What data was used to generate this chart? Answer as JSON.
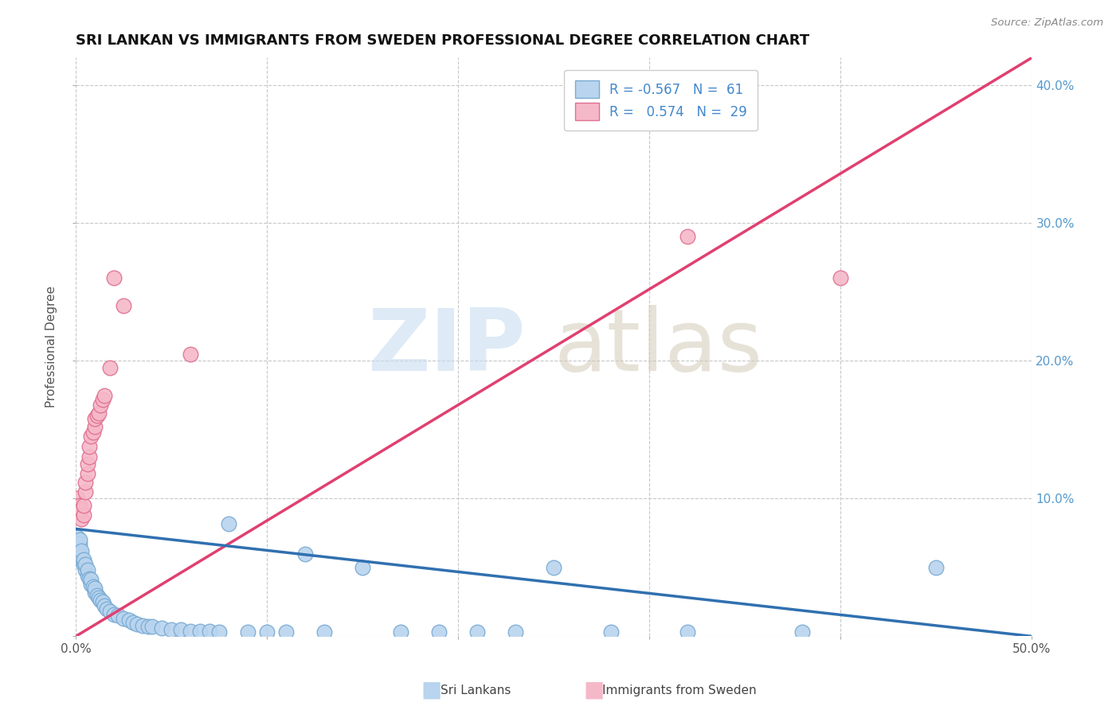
{
  "title": "SRI LANKAN VS IMMIGRANTS FROM SWEDEN PROFESSIONAL DEGREE CORRELATION CHART",
  "source": "Source: ZipAtlas.com",
  "ylabel": "Professional Degree",
  "xlim": [
    0.0,
    0.5
  ],
  "ylim": [
    0.0,
    0.42
  ],
  "x_ticks": [
    0.0,
    0.1,
    0.2,
    0.3,
    0.4,
    0.5
  ],
  "y_ticks": [
    0.0,
    0.1,
    0.2,
    0.3,
    0.4
  ],
  "x_tick_labels": [
    "0.0%",
    "",
    "",
    "",
    "",
    "50.0%"
  ],
  "y_tick_labels_right": [
    "",
    "10.0%",
    "20.0%",
    "30.0%",
    "40.0%"
  ],
  "blue_face": "#b8d4ee",
  "blue_edge": "#7aabd4",
  "pink_face": "#f5b8c8",
  "pink_edge": "#e07090",
  "line_blue": "#3070b0",
  "line_pink": "#e04070",
  "grid_color": "#c8c8c8",
  "background": "#ffffff",
  "sri_lankans_x": [
    0.001,
    0.001,
    0.001,
    0.002,
    0.002,
    0.002,
    0.002,
    0.003,
    0.003,
    0.003,
    0.004,
    0.004,
    0.005,
    0.005,
    0.006,
    0.006,
    0.007,
    0.008,
    0.008,
    0.009,
    0.01,
    0.01,
    0.011,
    0.012,
    0.013,
    0.014,
    0.015,
    0.016,
    0.018,
    0.02,
    0.022,
    0.025,
    0.028,
    0.03,
    0.032,
    0.035,
    0.038,
    0.04,
    0.045,
    0.05,
    0.055,
    0.06,
    0.065,
    0.07,
    0.075,
    0.08,
    0.09,
    0.1,
    0.11,
    0.12,
    0.13,
    0.15,
    0.17,
    0.19,
    0.21,
    0.23,
    0.25,
    0.28,
    0.32,
    0.38,
    0.45
  ],
  "sri_lankans_y": [
    0.065,
    0.068,
    0.072,
    0.06,
    0.063,
    0.067,
    0.07,
    0.055,
    0.058,
    0.062,
    0.052,
    0.056,
    0.048,
    0.052,
    0.044,
    0.048,
    0.042,
    0.038,
    0.041,
    0.036,
    0.032,
    0.035,
    0.03,
    0.028,
    0.026,
    0.025,
    0.022,
    0.02,
    0.018,
    0.016,
    0.015,
    0.013,
    0.012,
    0.01,
    0.009,
    0.008,
    0.007,
    0.007,
    0.006,
    0.005,
    0.005,
    0.004,
    0.004,
    0.004,
    0.003,
    0.082,
    0.003,
    0.003,
    0.003,
    0.06,
    0.003,
    0.05,
    0.003,
    0.003,
    0.003,
    0.003,
    0.05,
    0.003,
    0.003,
    0.003,
    0.05
  ],
  "sweden_x": [
    0.001,
    0.001,
    0.002,
    0.002,
    0.003,
    0.003,
    0.004,
    0.004,
    0.005,
    0.005,
    0.006,
    0.006,
    0.007,
    0.007,
    0.008,
    0.009,
    0.01,
    0.01,
    0.011,
    0.012,
    0.013,
    0.014,
    0.015,
    0.018,
    0.02,
    0.025,
    0.06,
    0.32,
    0.4
  ],
  "sweden_y": [
    0.095,
    0.1,
    0.09,
    0.095,
    0.085,
    0.092,
    0.088,
    0.095,
    0.105,
    0.112,
    0.118,
    0.125,
    0.13,
    0.138,
    0.145,
    0.148,
    0.152,
    0.158,
    0.16,
    0.162,
    0.168,
    0.172,
    0.175,
    0.195,
    0.26,
    0.24,
    0.205,
    0.29,
    0.26
  ],
  "pink_line_x0": 0.0,
  "pink_line_y0": 0.0,
  "pink_line_x1": 0.5,
  "pink_line_y1": 0.42,
  "blue_line_x0": 0.0,
  "blue_line_y0": 0.078,
  "blue_line_x1": 0.5,
  "blue_line_y1": 0.0
}
